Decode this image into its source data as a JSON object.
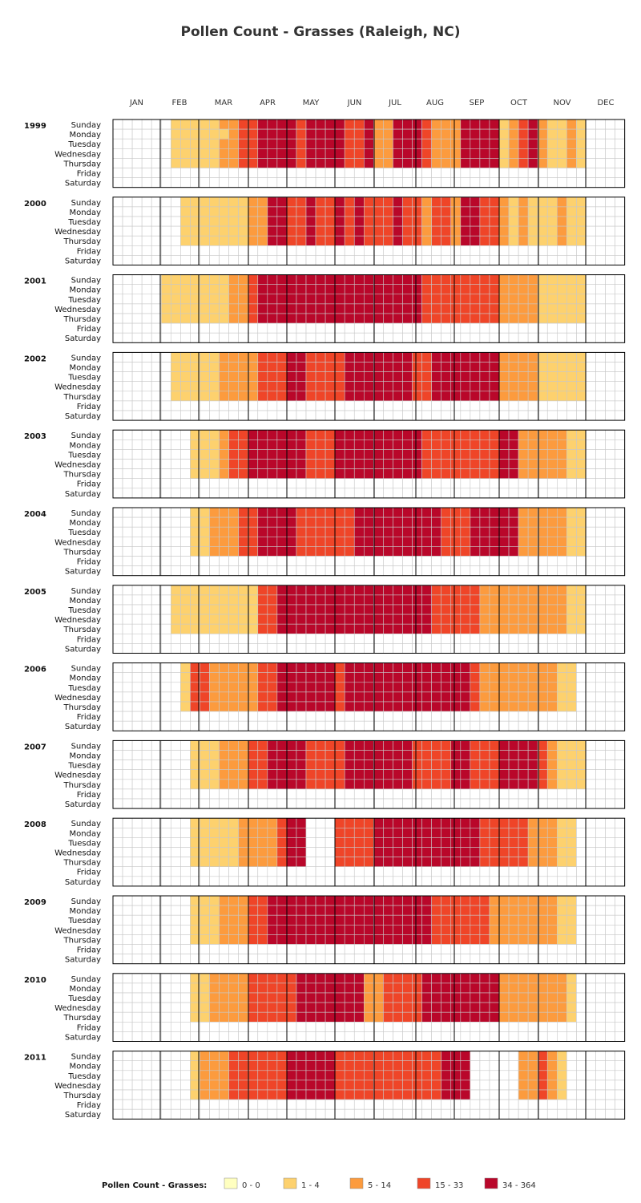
{
  "title": "Pollen Count - Grasses  (Raleigh, NC)",
  "chart_data": {
    "type": "heatmap",
    "title": "Pollen Count - Grasses  (Raleigh, NC)",
    "months": [
      "JAN",
      "FEB",
      "MAR",
      "APR",
      "MAY",
      "JUN",
      "JUL",
      "AUG",
      "SEP",
      "OCT",
      "NOV",
      "DEC"
    ],
    "weekdays": [
      "Sunday",
      "Monday",
      "Tuesday",
      "Wednesday",
      "Thursday",
      "Friday",
      "Saturday"
    ],
    "years": [
      1999,
      2000,
      2001,
      2002,
      2003,
      2004,
      2005,
      2006,
      2007,
      2008,
      2009,
      2010,
      2011
    ],
    "legend": {
      "title": "Pollen Count - Grasses:",
      "bins": [
        {
          "label": "0 - 0",
          "color": "#ffffc0"
        },
        {
          "label": "1 - 4",
          "color": "#fdd16e"
        },
        {
          "label": "5 - 14",
          "color": "#fc9b3e"
        },
        {
          "label": "15 - 33",
          "color": "#ef4528"
        },
        {
          "label": "34 - 364",
          "color": "#b9072a"
        }
      ]
    },
    "weekly_counts": [
      {
        "year": 1999,
        "rows": [
          "000000111112233444434444334224443222444412342112100000000",
          "000000111111233444434444334224443222444412342112100000000",
          "000000111112233444434444334224443222444412342112100000000",
          "000000111112233444434444334224443222444412342112100000000",
          "000000111112233444434444334224443222444412342112100000000",
          "000000000000000000000000000000000000000000000000000000000",
          "000000000000000000000000000000000000000000000000000000000"
        ]
      },
      {
        "year": 2000,
        "rows": [
          "000000011111112244334334343334332332443321211121100000000",
          "000000011111112244334334343334332332443321211121100000000",
          "000000011111112244334334343334332332443321211121100000000",
          "000000011111112244334334343334332332443321211121100000000",
          "000000011111112244334334343334332332443321211121100000000",
          "000000000000000000000000000000000000000000000000000000000",
          "000000000000000000000000000000000000000000000000000000000"
        ]
      },
      {
        "year": 2001,
        "rows": [
          "000001111111223444444444444444443333333322221111100000000",
          "000001111111223444444444444444443333333322221111100000000",
          "000001111111223444444444444444443333333322221111100000000",
          "000001111111223444444444444444443333333322221111100000000",
          "000001111111223444444444444444443333333322221111100000000",
          "000000000000000000000000000000000000000000000000000000000",
          "000000000000000000000000000000000000000000000000000000000"
        ]
      },
      {
        "year": 2002,
        "rows": [
          "000000111112222333443333444444433444444422221111100000000",
          "000000111112222333443333444444433444444422221111100000000",
          "000000111112222333443333444444433444444422221111100000000",
          "000000111112222333443333444444433444444422221111100000000",
          "000000111112222333443333444444433444444422221111100000000",
          "000000000000000000000000000000000000000000000000000000000",
          "000000000000000000000000000000000000000000000000000000000"
        ]
      },
      {
        "year": 2003,
        "rows": [
          "000000001112334444443334444444443333333344222221100000000",
          "000000001112334444443334444444443333333344222221100000000",
          "000000001112334444443334444444443333333344222221100000000",
          "000000001112334444443334444444443333333344222221100000000",
          "000000001112334444443334444444443333333344222221100000000",
          "000000000000000000000000000000000000000000000000000000000",
          "000000000000000000000000000000000000000000000000000000000"
        ]
      },
      {
        "year": 2004,
        "rows": [
          "000000001122233444433333344444444433344444222221100000000",
          "000000001122233444433333344444444433344444222221100000000",
          "000000001122233444433333344444444433344444222221100000000",
          "000000001122233444433333344444444433344444222221100000000",
          "000000001122233444433333344444444433344444222221100000000",
          "000000000000000000000000000000000000000000000000000000000",
          "000000000000000000000000000000000000000000000000000000000"
        ]
      },
      {
        "year": 2005,
        "rows": [
          "000000111111111334444444444444444333332222222221100000000",
          "000000111111111334444444444444444333332222222221100000000",
          "000000111111111334444444444444444333332222222221100000000",
          "000000111111111334444444444444444333332222222221100000000",
          "000000111111111334444444444444444333332222222221100000000",
          "000000000000000000000000000000000000000000000000000000000",
          "000000000000000000000000000000000000000000000000000000000"
        ]
      },
      {
        "year": 2006,
        "rows": [
          "000000013322222334444443444444444444432222222211000000000",
          "000000013322222334444443444444444444432222222211000000000",
          "000000013322222334444443444444444444432222222211000000000",
          "000000013322222334444443444444444444432222222211000000000",
          "000000013322222334444443444444444444432222222211000000000",
          "000000000000000000000000000000000000000000000000000000000",
          "000000000000000000000000000000000000000000000000000000000"
        ]
      },
      {
        "year": 2007,
        "rows": [
          "000000001112223344443333444444433334433344443211100000000",
          "000000001112223344443333444444433334433344443211100000000",
          "000000001112223344443333444444433334433344443211100000000",
          "000000001112223344443333444444433334433344443211100000000",
          "000000001112223344443333444444433334433344443211100000000",
          "000000000000000000000000000000000000000000000000000000000",
          "000000000000000000000000000000000000000000000000000000000"
        ]
      },
      {
        "year": 2008,
        "rows": [
          "000000001111122223440003333444444444443333322211000000000",
          "000000001111122223440003333444444444443333322211000000000",
          "000000001111122223440003333444444444443333322211000000000",
          "000000001111122223440003333444444444443333322211000000000",
          "000000001111122223440003333444444444443333322211000000000",
          "000000000000000000000000000000000000000000000000000000000",
          "000000000000000000000000000000000000000000000000000000000"
        ]
      },
      {
        "year": 2009,
        "rows": [
          "000000001112223344444444444444444333333222222211000000000",
          "000000001112223344444444444444444333333222222211000000000",
          "000000001112223344444444444444444333333222222211000000000",
          "000000001112223344444444444444444333333222222211000000000",
          "000000001112223344444444444444444333333222222211000000000",
          "000000000000000000000000000000000000000000000000000000000",
          "000000000000000000000000000000000000000000000000000000000"
        ]
      },
      {
        "year": 2010,
        "rows": [
          "000000001122223333344444442233334444444422222221000000000",
          "000000001122223333344444442233334444444422222221000000000",
          "000000001122223333344444442233334444444422222221000000000",
          "000000001122223333344444442233334444444422222221000000000",
          "000000001122223333344444442233334444444422222221000000000",
          "000000000000000000000000000000000000000000000000000000000",
          "000000000000000000000000000000000000000000000000000000000"
        ]
      },
      {
        "year": 2011,
        "rows": [
          "000000001222333333444443333333333344400000223210000000000",
          "000000001222333333444443333333333344400000223210000000000",
          "000000001222333333444443333333333344400000223210000000000",
          "000000001222333333444443333333333344400000223210000000000",
          "000000001222333333444443333333333344400000223210000000000",
          "000000000000000000000000000000000000000000000000000000000",
          "000000000000000000000000000000000000000000000000000000000"
        ]
      }
    ],
    "note_bins": "each digit = legend bin index (0 = 0-0 or no data drawn)"
  }
}
